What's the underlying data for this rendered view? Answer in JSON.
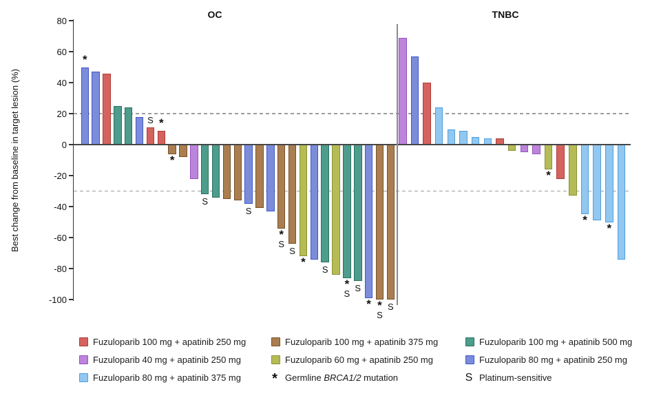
{
  "chart_data": {
    "type": "bar",
    "title": "",
    "ylabel": "Best change from baseline in target lesion (%)",
    "ylim": [
      -100,
      80
    ],
    "yticks": [
      80,
      60,
      40,
      20,
      0,
      -20,
      -40,
      -60,
      -80,
      -100
    ],
    "reference_lines_pct": [
      20,
      -30
    ],
    "grid": "off",
    "legend_position": "bottom",
    "series": {
      "red": {
        "label": "Fuzuloparib 100 mg + apatinib 250 mg",
        "fill": "#d4635f",
        "stroke": "#b13a36"
      },
      "brown": {
        "label": "Fuzuloparib 100 mg + apatinib 375 mg",
        "fill": "#aa7e50",
        "stroke": "#76522a"
      },
      "teal": {
        "label": "Fuzuloparib 100 mg + apatinib 500 mg",
        "fill": "#4d9c8c",
        "stroke": "#2a7060"
      },
      "purple": {
        "label": "Fuzuloparib 40 mg + apatinib 250 mg",
        "fill": "#bc84da",
        "stroke": "#9851c0"
      },
      "yellowgreen": {
        "label": "Fuzuloparib 60 mg + apatinib 250 mg",
        "fill": "#b5bc55",
        "stroke": "#8a9133"
      },
      "blue": {
        "label": "Fuzuloparib 80 mg + apatinib 250 mg",
        "fill": "#7b8cdb",
        "stroke": "#4156c8"
      },
      "lightblue": {
        "label": "Fuzuloparib 80 mg + apatinib 375 mg",
        "fill": "#92c7f0",
        "stroke": "#4d9fe0"
      }
    },
    "annotation_key": {
      "star": "Germline BRCA1/2 mutation",
      "S": "Platinum-sensitive"
    },
    "groups": [
      {
        "label": "OC",
        "bars": [
          {
            "value": 50,
            "series": "blue",
            "annotation": "*"
          },
          {
            "value": 47,
            "series": "blue",
            "annotation": ""
          },
          {
            "value": 46,
            "series": "red",
            "annotation": ""
          },
          {
            "value": 25,
            "series": "teal",
            "annotation": ""
          },
          {
            "value": 24,
            "series": "teal",
            "annotation": ""
          },
          {
            "value": 18,
            "series": "blue",
            "annotation": ""
          },
          {
            "value": 11,
            "series": "red",
            "annotation": "S"
          },
          {
            "value": 9,
            "series": "red",
            "annotation": "*"
          },
          {
            "value": -6,
            "series": "brown",
            "annotation": "*"
          },
          {
            "value": -8,
            "series": "brown",
            "annotation": ""
          },
          {
            "value": -22,
            "series": "purple",
            "annotation": ""
          },
          {
            "value": -32,
            "series": "teal",
            "annotation": "S"
          },
          {
            "value": -34,
            "series": "teal",
            "annotation": ""
          },
          {
            "value": -35,
            "series": "brown",
            "annotation": ""
          },
          {
            "value": -36,
            "series": "brown",
            "annotation": ""
          },
          {
            "value": -38,
            "series": "blue",
            "annotation": "S"
          },
          {
            "value": -41,
            "series": "brown",
            "annotation": ""
          },
          {
            "value": -43,
            "series": "blue",
            "annotation": ""
          },
          {
            "value": -54,
            "series": "brown",
            "annotation": "*S"
          },
          {
            "value": -64,
            "series": "brown",
            "annotation": "S"
          },
          {
            "value": -72,
            "series": "yellowgreen",
            "annotation": "*"
          },
          {
            "value": -74,
            "series": "blue",
            "annotation": ""
          },
          {
            "value": -76,
            "series": "teal",
            "annotation": "S"
          },
          {
            "value": -84,
            "series": "yellowgreen",
            "annotation": ""
          },
          {
            "value": -86,
            "series": "teal",
            "annotation": "*S"
          },
          {
            "value": -88,
            "series": "teal",
            "annotation": "S"
          },
          {
            "value": -99,
            "series": "blue",
            "annotation": "*"
          },
          {
            "value": -100,
            "series": "brown",
            "annotation": "*S"
          },
          {
            "value": -100,
            "series": "brown",
            "annotation": "S"
          }
        ]
      },
      {
        "label": "TNBC",
        "bars": [
          {
            "value": 69,
            "series": "purple",
            "annotation": ""
          },
          {
            "value": 57,
            "series": "blue",
            "annotation": ""
          },
          {
            "value": 40,
            "series": "red",
            "annotation": ""
          },
          {
            "value": 24,
            "series": "lightblue",
            "annotation": ""
          },
          {
            "value": 10,
            "series": "lightblue",
            "annotation": ""
          },
          {
            "value": 9,
            "series": "lightblue",
            "annotation": ""
          },
          {
            "value": 5,
            "series": "lightblue",
            "annotation": ""
          },
          {
            "value": 4,
            "series": "lightblue",
            "annotation": ""
          },
          {
            "value": 4,
            "series": "red",
            "annotation": ""
          },
          {
            "value": -4,
            "series": "yellowgreen",
            "annotation": ""
          },
          {
            "value": -5,
            "series": "purple",
            "annotation": ""
          },
          {
            "value": -6,
            "series": "purple",
            "annotation": ""
          },
          {
            "value": -16,
            "series": "yellowgreen",
            "annotation": "*"
          },
          {
            "value": -22,
            "series": "red",
            "annotation": ""
          },
          {
            "value": -33,
            "series": "yellowgreen",
            "annotation": ""
          },
          {
            "value": -45,
            "series": "lightblue",
            "annotation": "*"
          },
          {
            "value": -49,
            "series": "lightblue",
            "annotation": ""
          },
          {
            "value": -50,
            "series": "lightblue",
            "annotation": "*"
          },
          {
            "value": -74,
            "series": "lightblue",
            "annotation": ""
          }
        ]
      }
    ],
    "legend_columns": [
      {
        "items": [
          {
            "type": "swatch",
            "series": "red",
            "label": "Fuzuloparib 100 mg + apatinib 250 mg"
          },
          {
            "type": "swatch",
            "series": "purple",
            "label": "Fuzuloparib 40 mg + apatinib 250 mg"
          },
          {
            "type": "swatch",
            "series": "lightblue",
            "label": "Fuzuloparib 80 mg + apatinib 375 mg"
          }
        ]
      },
      {
        "items": [
          {
            "type": "swatch",
            "series": "brown",
            "label": "Fuzuloparib 100 mg + apatinib 375 mg"
          },
          {
            "type": "swatch",
            "series": "yellowgreen",
            "label": "Fuzuloparib 60 mg + apatinib 250 mg"
          },
          {
            "type": "symbol",
            "symbol": "*",
            "pre": "Germline ",
            "italic": "BRCA1/2",
            "post": " mutation"
          }
        ]
      },
      {
        "items": [
          {
            "type": "swatch",
            "series": "teal",
            "label": "Fuzuloparib 100 mg + apatinib 500 mg"
          },
          {
            "type": "swatch",
            "series": "blue",
            "label": "Fuzuloparib 80 mg + apatinib 250 mg"
          },
          {
            "type": "symbol",
            "symbol": "S",
            "pre": "Platinum-sensitive",
            "italic": "",
            "post": ""
          }
        ]
      }
    ]
  }
}
